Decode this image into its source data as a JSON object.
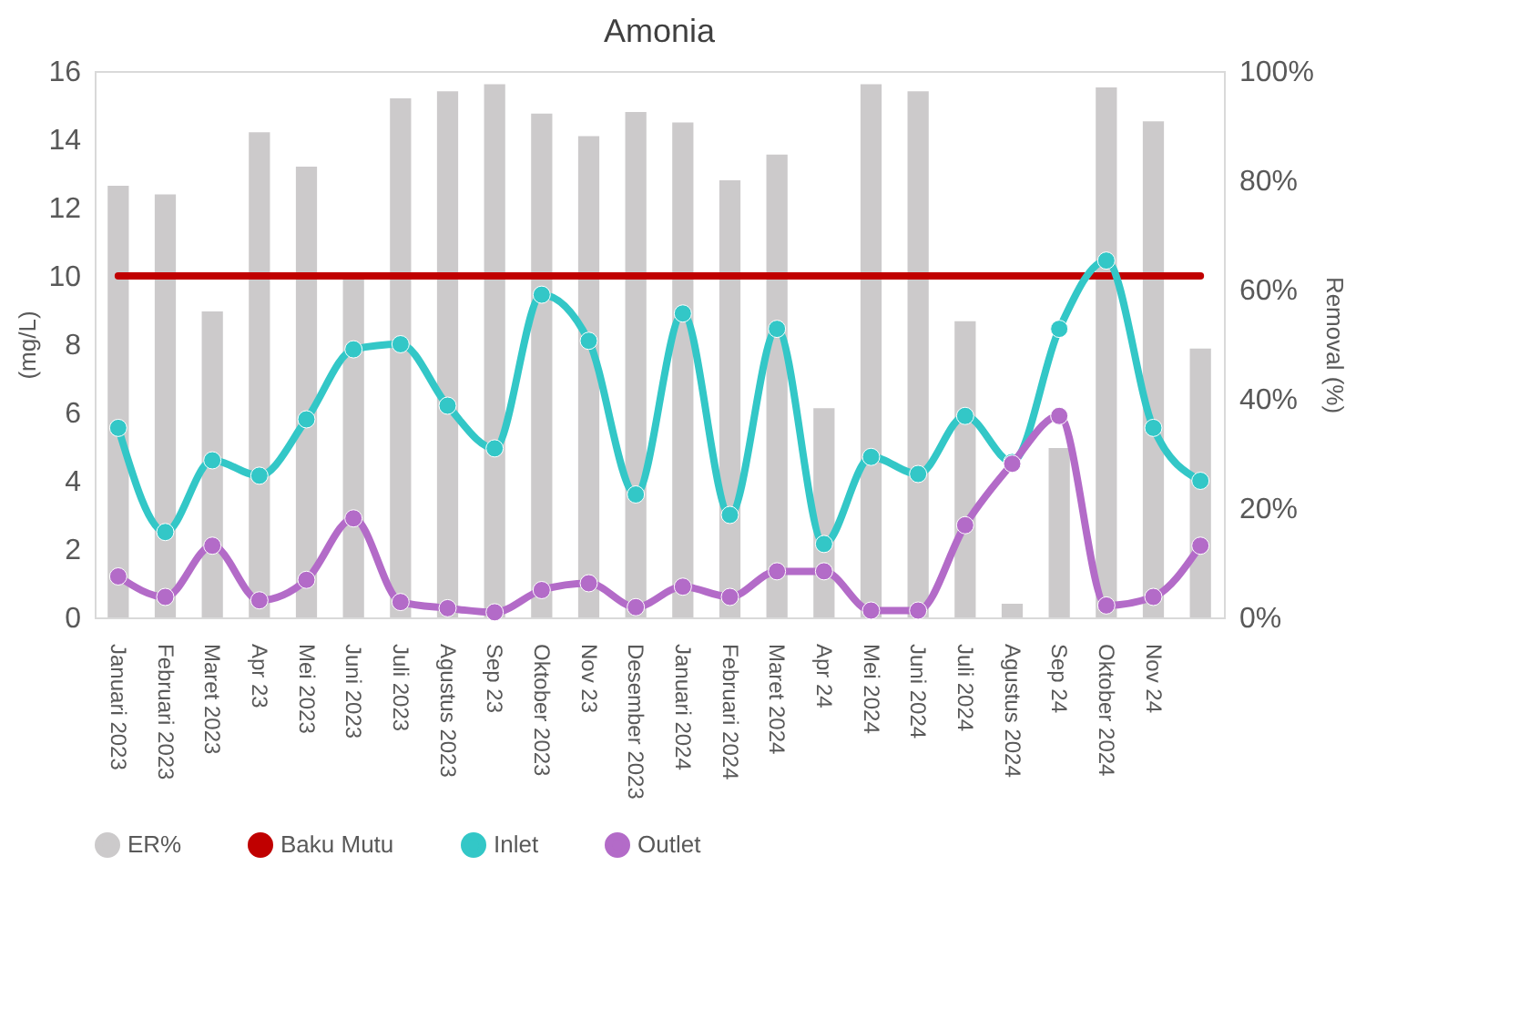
{
  "chart_data": {
    "type": "line",
    "title": "Amonia",
    "ylabel": "(mg/L)",
    "y2label": "Removal (%)",
    "categories": [
      "Januari 2023",
      "Februari 2023",
      "Maret 2023",
      "Apr 23",
      "Mei 2023",
      "Juni 2023",
      "Juli 2023",
      "Agustus 2023",
      "Sep 23",
      "Oktober 2023",
      "Nov 23",
      "Desember 2023",
      "Januari 2024",
      "Februari 2024",
      "Maret 2024",
      "Apr 24",
      "Mei 2024",
      "Juni 2024",
      "Juli 2024",
      "Agustus 2024",
      "Sep 24",
      "Oktober 2024",
      "Nov 24",
      null
    ],
    "series": [
      {
        "name": "ER%",
        "type": "bar",
        "axis": "y2",
        "color": "#cccacb",
        "values": [
          79,
          77.4,
          56,
          88.8,
          82.5,
          62,
          95,
          96.3,
          97.6,
          92.2,
          88.1,
          92.5,
          90.6,
          80,
          84.7,
          38.3,
          97.6,
          96.3,
          54.2,
          2.5,
          31,
          97,
          90.8,
          49.2
        ]
      },
      {
        "name": "Baku Mutu",
        "color": "#c00000",
        "marker": "none",
        "values": [
          10,
          10,
          10,
          10,
          10,
          10,
          10,
          10,
          10,
          10,
          10,
          10,
          10,
          10,
          10,
          10,
          10,
          10,
          10,
          10,
          10,
          10,
          10,
          10
        ]
      },
      {
        "name": "Inlet",
        "color": "#33c7c7",
        "marker": "circle",
        "values": [
          5.55,
          2.5,
          4.6,
          4.15,
          5.8,
          7.85,
          8,
          6.2,
          4.95,
          9.45,
          8.1,
          3.6,
          8.9,
          3,
          8.45,
          2.15,
          4.7,
          4.2,
          5.9,
          4.55,
          8.45,
          10.45,
          5.55,
          4
        ]
      },
      {
        "name": "Outlet",
        "color": "#b36bc8",
        "marker": "circle",
        "values": [
          1.2,
          0.6,
          2.1,
          0.5,
          1.1,
          2.9,
          0.45,
          0.27,
          0.15,
          0.8,
          1,
          0.3,
          0.9,
          0.6,
          1.35,
          1.35,
          0.2,
          0.2,
          2.7,
          4.5,
          5.9,
          0.35,
          0.6,
          2.1
        ]
      }
    ],
    "ylim": [
      0,
      16
    ],
    "yticks": [
      0,
      2,
      4,
      6,
      8,
      10,
      12,
      14,
      16
    ],
    "y2lim": [
      0,
      100
    ],
    "y2ticks": [
      {
        "value": 0,
        "label": "0%"
      },
      {
        "value": 20,
        "label": "20%"
      },
      {
        "value": 40,
        "label": "40%"
      },
      {
        "value": 60,
        "label": "60%"
      },
      {
        "value": 80,
        "label": "80%"
      },
      {
        "value": 100,
        "label": "100%"
      }
    ],
    "grid": false,
    "legend": "bottom"
  }
}
